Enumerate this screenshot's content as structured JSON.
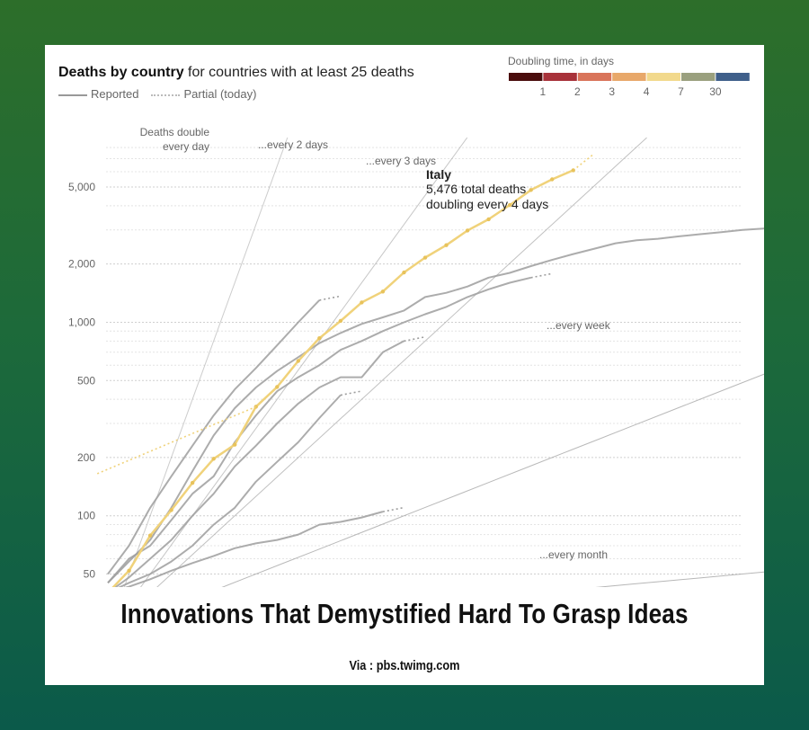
{
  "header": {
    "title_bold": "Deaths by country",
    "title_rest": " for countries with at least 25 deaths",
    "legend_reported": "Reported",
    "legend_partial": "Partial (today)",
    "doubling_title": "Doubling time, in days"
  },
  "doubling_scale": {
    "swatches": [
      "#4a0d0d",
      "#a8323a",
      "#d9745a",
      "#e8a86a",
      "#f2d98c",
      "#9aa07e",
      "#3f5f8a"
    ],
    "labels": [
      "1",
      "2",
      "3",
      "4",
      "7",
      "30"
    ]
  },
  "annotation": {
    "country": "Italy",
    "line1": "5,476 total deaths",
    "line2": "doubling every 4 days"
  },
  "guide_labels": {
    "day_1": "Deaths double",
    "day_2": "every day",
    "two_days": "...every 2 days",
    "three_days": "...every 3 days",
    "week": "...every week",
    "month": "...every month"
  },
  "chart_data": {
    "type": "line",
    "y_scale": "log",
    "ylim": [
      40,
      9000
    ],
    "y_ticks": [
      50,
      100,
      200,
      500,
      1000,
      2000,
      5000
    ],
    "y_tick_labels": [
      "50",
      "100",
      "200",
      "500",
      "1,000",
      "2,000",
      "5,000"
    ],
    "grid": true,
    "x_unit": "days since 25th death",
    "xlim": [
      0,
      30
    ],
    "highlight_color": "#f0d27a",
    "other_color": "#9d9d9d",
    "series": [
      {
        "name": "Italy",
        "highlight": true,
        "x": [
          0,
          1,
          2,
          3,
          4,
          5,
          6,
          7,
          8,
          9,
          10,
          11,
          12,
          13,
          14,
          15,
          16,
          17,
          18,
          19,
          20,
          21,
          22
        ],
        "y": [
          40,
          52,
          79,
          107,
          148,
          197,
          233,
          366,
          463,
          631,
          827,
          1016,
          1266,
          1441,
          1809,
          2158,
          2503,
          2978,
          3405,
          4032,
          4825,
          5476,
          6100
        ]
      },
      {
        "name": "",
        "x": [
          0,
          1,
          2,
          3,
          4,
          5,
          6,
          7,
          8,
          9,
          10,
          11,
          12,
          13,
          14,
          15,
          16,
          17,
          18,
          19,
          20,
          21,
          22,
          23,
          24,
          25,
          26,
          27,
          28,
          29,
          30,
          31
        ],
        "y": [
          45,
          58,
          75,
          110,
          170,
          260,
          360,
          460,
          560,
          660,
          780,
          880,
          980,
          1060,
          1150,
          1350,
          1420,
          1530,
          1700,
          1800,
          1950,
          2100,
          2250,
          2400,
          2560,
          2650,
          2700,
          2780,
          2850,
          2920,
          3000,
          3050
        ]
      },
      {
        "name": "",
        "x": [
          0,
          1,
          2,
          3,
          4,
          5,
          6,
          7,
          8,
          9,
          10,
          11,
          12,
          13,
          14,
          15,
          16,
          17,
          18,
          19,
          20
        ],
        "y": [
          45,
          60,
          70,
          95,
          130,
          160,
          240,
          330,
          440,
          520,
          600,
          720,
          800,
          900,
          1000,
          1100,
          1200,
          1350,
          1480,
          1600,
          1700
        ]
      },
      {
        "name": "",
        "x": [
          0,
          1,
          2,
          3,
          4,
          5,
          6,
          7,
          8,
          9,
          10
        ],
        "y": [
          50,
          70,
          110,
          160,
          230,
          330,
          450,
          580,
          760,
          1000,
          1300
        ]
      },
      {
        "name": "",
        "x": [
          0,
          1,
          2,
          3,
          4,
          5,
          6,
          7,
          8,
          9,
          10,
          11,
          12,
          13,
          14
        ],
        "y": [
          40,
          48,
          60,
          75,
          100,
          130,
          180,
          230,
          300,
          380,
          460,
          520,
          520,
          700,
          800
        ]
      },
      {
        "name": "",
        "x": [
          0,
          1,
          2,
          3,
          4,
          5,
          6,
          7,
          8,
          9,
          10,
          11
        ],
        "y": [
          40,
          45,
          50,
          58,
          70,
          90,
          110,
          150,
          190,
          240,
          320,
          420
        ]
      },
      {
        "name": "",
        "x": [
          0,
          1,
          2,
          3,
          4,
          5,
          6,
          7,
          8,
          9,
          10,
          11,
          12,
          13
        ],
        "y": [
          40,
          43,
          47,
          52,
          57,
          62,
          68,
          72,
          75,
          80,
          90,
          93,
          98,
          105
        ]
      }
    ]
  }
}
